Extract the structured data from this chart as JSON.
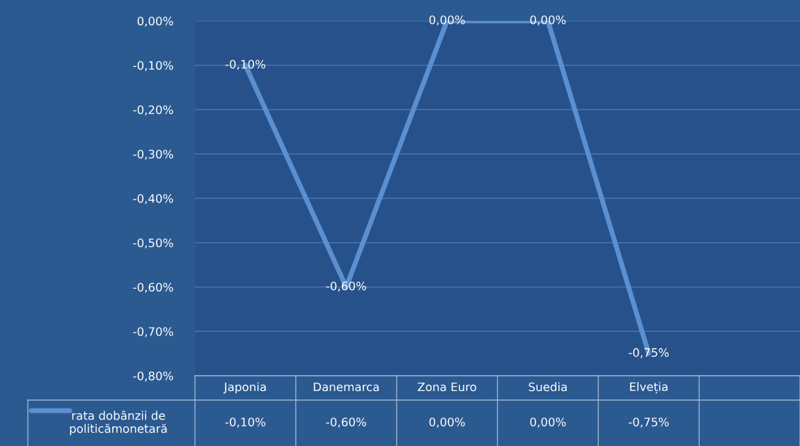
{
  "chart_data": {
    "type": "line",
    "categories": [
      "Japonia",
      "Danemarca",
      "Zona Euro",
      "Suedia",
      "Elveția",
      null
    ],
    "series": [
      {
        "name": "rata dobânzii de politicămonetară",
        "color": "#5b8fd0",
        "values": [
          -0.1,
          -0.6,
          0.0,
          0.0,
          -0.75,
          null
        ],
        "value_labels": [
          "-0,10%",
          "-0,60%",
          "0,00%",
          "0,00%",
          "-0,75%",
          null
        ]
      }
    ],
    "ylim": [
      -0.8,
      0.0
    ],
    "yticks": [
      {
        "value": 0.0,
        "label": "0,00%"
      },
      {
        "value": -0.1,
        "label": "-0,10%"
      },
      {
        "value": -0.2,
        "label": "-0,20%"
      },
      {
        "value": -0.3,
        "label": "-0,30%"
      },
      {
        "value": -0.4,
        "label": "-0,40%"
      },
      {
        "value": -0.5,
        "label": "-0,50%"
      },
      {
        "value": -0.6,
        "label": "-0,60%"
      },
      {
        "value": -0.7,
        "label": "-0,70%"
      },
      {
        "value": -0.8,
        "label": "-0,80%"
      }
    ],
    "grid": "y",
    "legend": "bottom",
    "marker": "none",
    "line_style": "solid"
  }
}
